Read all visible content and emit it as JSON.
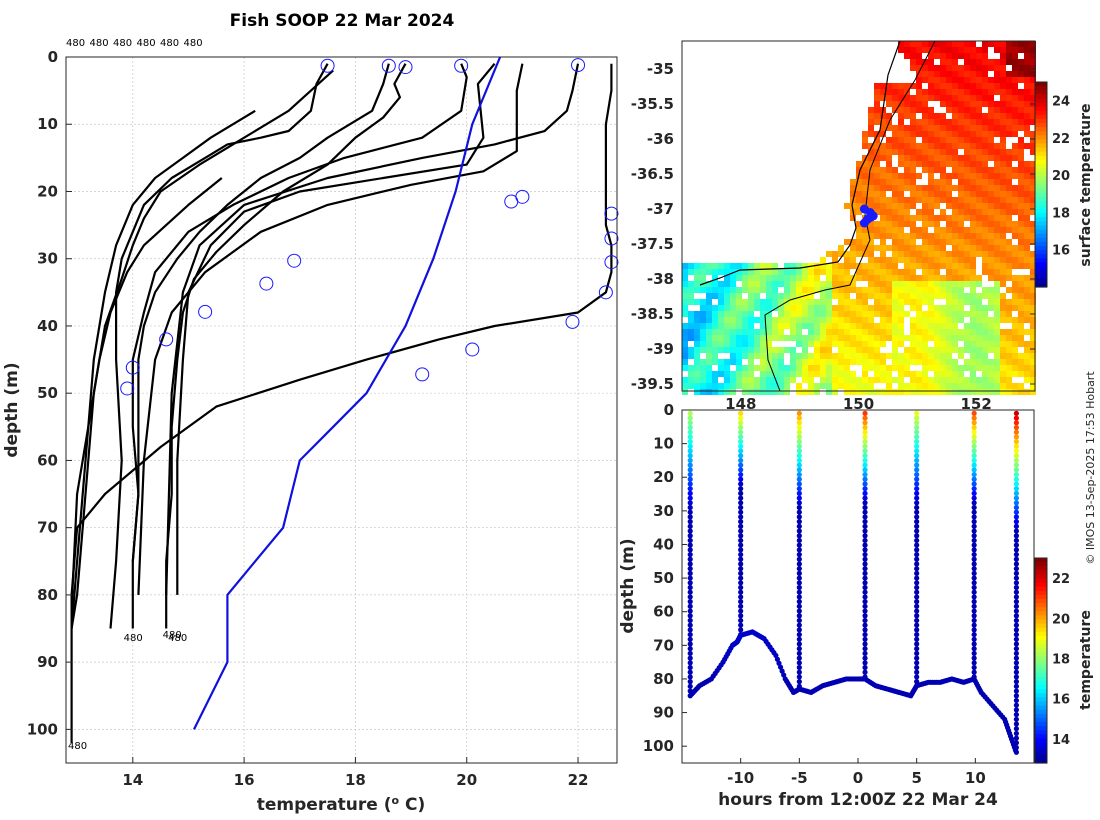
{
  "title": "Fish SOOP 22 Mar 2024",
  "credit": "© IMOS 13-Sep-2025 17:53 Hobart",
  "chart_data": [
    {
      "type": "line",
      "name": "temperature-depth profiles",
      "xlabel": "temperature (° C)",
      "ylabel": "depth (m)",
      "xlim": [
        12.8,
        22.7
      ],
      "ylim": [
        105,
        0
      ],
      "xticks": [
        14,
        16,
        18,
        20,
        22
      ],
      "yticks": [
        0,
        10,
        20,
        30,
        40,
        50,
        60,
        70,
        80,
        90,
        100
      ],
      "top_labels": [
        "480",
        "480",
        "480",
        "480",
        "480",
        "480"
      ],
      "end_labels": [
        {
          "text": "480",
          "t": 12.8,
          "d": 102
        },
        {
          "text": "480",
          "t": 13.8,
          "d": 86
        },
        {
          "text": "480",
          "t": 14.5,
          "d": 85.5
        },
        {
          "text": "480",
          "t": 14.6,
          "d": 86
        }
      ],
      "profiles": [
        {
          "t": [
            17.5,
            17.3,
            17.2,
            16.8,
            16.3,
            15.7,
            15.3,
            14.7,
            14.2,
            14.0,
            13.8,
            13.7,
            13.7,
            13.8,
            13.7,
            13.6
          ],
          "d": [
            1,
            4,
            8,
            11,
            12,
            13,
            15,
            18,
            22,
            26,
            30,
            35,
            45,
            60,
            75,
            85
          ]
        },
        {
          "t": [
            18.6,
            18.5,
            18.3,
            17.5,
            17.0,
            16.3,
            15.7,
            15.2,
            14.8,
            14.4,
            14.2,
            14.1,
            14.1,
            14.1,
            14.0,
            14.0
          ],
          "d": [
            1,
            4,
            8,
            12,
            15,
            18,
            22,
            26,
            30,
            35,
            40,
            45,
            55,
            65,
            75,
            85
          ]
        },
        {
          "t": [
            18.9,
            18.7,
            18.8,
            18.5,
            18.0,
            17.5,
            16.7,
            16.0,
            15.5,
            15.1,
            14.9,
            14.8,
            14.7,
            14.7,
            14.6,
            14.6
          ],
          "d": [
            1,
            4,
            6,
            9,
            12,
            16,
            20,
            25,
            29,
            33,
            38,
            45,
            55,
            65,
            75,
            85
          ]
        },
        {
          "t": [
            19.9,
            20.0,
            19.9,
            19.2,
            17.8,
            16.8,
            15.8,
            15.0,
            14.4,
            14.2,
            14.0,
            14.0,
            14.1,
            14.0
          ],
          "d": [
            1,
            3,
            8,
            12,
            15,
            18,
            22,
            26,
            32,
            38,
            45,
            55,
            65,
            75
          ]
        },
        {
          "t": [
            20.5,
            20.2,
            20.3,
            20.0,
            18.5,
            17.0,
            16.0,
            15.4,
            15.0,
            14.9,
            14.8,
            14.8
          ],
          "d": [
            1,
            4,
            12,
            16,
            18,
            20,
            23,
            28,
            35,
            45,
            60,
            80
          ]
        },
        {
          "t": [
            21.0,
            20.9,
            20.9,
            20.3,
            19.0,
            17.5,
            16.3,
            15.3,
            14.7,
            14.4,
            14.2,
            14.1
          ],
          "d": [
            1,
            5,
            14,
            17,
            19,
            22,
            26,
            32,
            38,
            45,
            60,
            80
          ]
        },
        {
          "t": [
            22.0,
            21.9,
            21.8,
            21.4,
            20.5,
            19.2,
            17.5,
            16.0,
            15.2,
            14.9,
            14.7,
            14.6
          ],
          "d": [
            1,
            5,
            8,
            11,
            13,
            15,
            18,
            22,
            28,
            35,
            50,
            80
          ]
        },
        {
          "t": [
            22.6,
            22.6,
            22.5,
            22.5,
            22.5,
            22.6,
            22.6,
            22.5,
            22.0,
            20.5,
            19.5,
            18.2,
            17.0,
            15.5,
            14.5,
            13.5,
            13.0,
            12.9,
            12.9
          ],
          "d": [
            1,
            5,
            10,
            20,
            25,
            28,
            32,
            35,
            38,
            40,
            42,
            45,
            48,
            52,
            58,
            65,
            70,
            80,
            102
          ]
        },
        {
          "t": [
            17.6,
            16.8,
            16.0,
            15.2,
            14.5,
            14.2,
            14.0,
            13.8,
            13.5,
            13.3,
            13.2,
            13.1,
            13.0,
            12.9
          ],
          "d": [
            2,
            8,
            12,
            16,
            20,
            24,
            28,
            33,
            40,
            50,
            60,
            70,
            80,
            85
          ]
        },
        {
          "t": [
            16.2,
            15.4,
            14.9,
            14.4,
            14.0,
            13.7,
            13.5,
            13.3,
            13.2,
            13.1,
            13.0,
            12.9
          ],
          "d": [
            8,
            12,
            15,
            18,
            22,
            28,
            35,
            45,
            55,
            65,
            75,
            85
          ]
        },
        {
          "t": [
            15.6,
            15.0,
            14.6,
            14.2,
            13.9,
            13.6,
            13.4,
            13.2,
            13.0,
            12.9
          ],
          "d": [
            18,
            22,
            25,
            28,
            32,
            38,
            45,
            55,
            65,
            82
          ]
        }
      ],
      "circles": [
        {
          "t": 17.5,
          "d": 1.3
        },
        {
          "t": 18.6,
          "d": 1.3
        },
        {
          "t": 18.9,
          "d": 1.5
        },
        {
          "t": 19.9,
          "d": 1.3
        },
        {
          "t": 22.0,
          "d": 1.2
        },
        {
          "t": 20.8,
          "d": 21.5
        },
        {
          "t": 21.0,
          "d": 20.8
        },
        {
          "t": 22.6,
          "d": 23.3
        },
        {
          "t": 22.6,
          "d": 27
        },
        {
          "t": 22.6,
          "d": 30.5
        },
        {
          "t": 22.5,
          "d": 35
        },
        {
          "t": 16.9,
          "d": 30.3
        },
        {
          "t": 16.4,
          "d": 33.7
        },
        {
          "t": 15.3,
          "d": 37.9
        },
        {
          "t": 14.6,
          "d": 42
        },
        {
          "t": 14.0,
          "d": 46.2
        },
        {
          "t": 13.9,
          "d": 49.3
        },
        {
          "t": 21.9,
          "d": 39.4
        },
        {
          "t": 20.1,
          "d": 43.5
        },
        {
          "t": 19.2,
          "d": 47.2
        }
      ],
      "reference": {
        "t": [
          20.6,
          20.1,
          19.8,
          19.4,
          18.9,
          18.2,
          17.6,
          17.0,
          16.7,
          16.2,
          15.7,
          15.7,
          15.1
        ],
        "d": [
          0,
          10,
          20,
          30,
          40,
          50,
          55,
          60,
          70,
          75,
          80,
          90,
          100
        ]
      }
    },
    {
      "type": "heatmap",
      "name": "surface temperature map",
      "xticks": [
        148,
        150,
        152
      ],
      "yticks": [
        -35,
        -35.5,
        -36,
        -36.5,
        -37,
        -37.5,
        -38,
        -38.5,
        -39,
        -39.5
      ],
      "xlim": [
        147.0,
        153.0
      ],
      "ylim": [
        -39.6,
        -34.6
      ],
      "colorbar_label": "surface temperature",
      "colorbar_ticks": [
        16,
        18,
        20,
        22,
        24
      ],
      "colorbar_range": [
        14,
        25
      ],
      "station_points": [
        [
          150.1,
          -37.0
        ],
        [
          150.2,
          -37.05
        ],
        [
          150.25,
          -37.1
        ],
        [
          150.15,
          -37.15
        ],
        [
          150.1,
          -37.2
        ],
        [
          150.2,
          -37.12
        ]
      ]
    },
    {
      "type": "scatter",
      "name": "depth vs time",
      "xlabel": "hours from 12:00Z 22 Mar 24",
      "ylabel": "depth (m)",
      "xlim": [
        -15,
        15
      ],
      "ylim": [
        105,
        0
      ],
      "xticks": [
        -10,
        -5,
        0,
        5,
        10
      ],
      "yticks": [
        0,
        10,
        20,
        30,
        40,
        50,
        60,
        70,
        80,
        90,
        100
      ],
      "colorbar_label": "temperature",
      "colorbar_ticks": [
        14,
        16,
        18,
        20,
        22
      ],
      "colorbar_range": [
        12.8,
        23
      ],
      "casts": [
        {
          "h": -14.3,
          "bottom": 85,
          "surface_t": 18.6
        },
        {
          "h": -10.0,
          "bottom": 67,
          "surface_t": 19.9
        },
        {
          "h": -5.0,
          "bottom": 83,
          "surface_t": 20.6
        },
        {
          "h": 0.6,
          "bottom": 80,
          "surface_t": 21.6
        },
        {
          "h": 5.0,
          "bottom": 82,
          "surface_t": 19.2
        },
        {
          "h": 9.9,
          "bottom": 80,
          "surface_t": 21.4
        },
        {
          "h": 13.5,
          "bottom": 102,
          "surface_t": 22.6
        }
      ],
      "bottom_track": {
        "h": [
          -14.3,
          -13.5,
          -12.5,
          -11.5,
          -10.7,
          -10.3,
          -10.0,
          -9.0,
          -8.0,
          -7.0,
          -6.2,
          -5.5,
          -5.0,
          -4.0,
          -3.0,
          -2.0,
          -1.0,
          0.0,
          0.6,
          1.5,
          2.5,
          3.5,
          4.5,
          5.0,
          6.0,
          7.0,
          8.0,
          9.0,
          9.9,
          10.5,
          11.5,
          12.5,
          13.0,
          13.5
        ],
        "d": [
          85,
          82,
          80,
          75,
          70,
          69,
          67,
          66,
          68,
          73,
          80,
          84,
          83,
          84,
          82,
          81,
          80,
          80,
          80,
          82,
          83,
          84,
          85,
          82,
          81,
          81,
          80,
          81,
          80,
          84,
          88,
          92,
          97,
          102
        ]
      }
    }
  ]
}
